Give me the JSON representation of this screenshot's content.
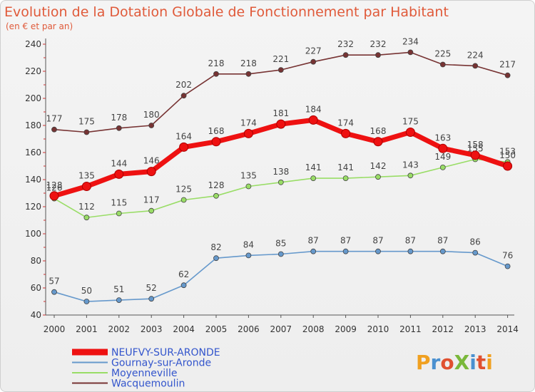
{
  "chart_data": {
    "type": "line",
    "title": "Evolution de la Dotation Globale de Fonctionnement par Habitant",
    "subtitle": "(en € et par an)",
    "xlabel": "",
    "ylabel": "",
    "x": [
      "2000",
      "2001",
      "2002",
      "2003",
      "2004",
      "2005",
      "2006",
      "2007",
      "2008",
      "2009",
      "2010",
      "2011",
      "2012",
      "2013",
      "2014"
    ],
    "ylim": [
      40,
      240
    ],
    "yticks": [
      "40",
      "60",
      "80",
      "100",
      "120",
      "140",
      "160",
      "180",
      "200",
      "220",
      "240"
    ],
    "grid": false,
    "legend_position": "bottom-left",
    "series": [
      {
        "name": "NEUFVY-SUR-ARONDE",
        "color": "#ee1111",
        "values": [
          128,
          135,
          144,
          146,
          164,
          168,
          174,
          181,
          184,
          174,
          168,
          175,
          163,
          158,
          150
        ],
        "labels": [
          "128",
          "135",
          "144",
          "146",
          "164",
          "168",
          "174",
          "181",
          "184",
          "174",
          "168",
          "175",
          "163",
          "158",
          "150"
        ]
      },
      {
        "name": "Gournay-sur-Aronde",
        "color": "#6699cc",
        "values": [
          57,
          50,
          51,
          52,
          62,
          82,
          84,
          85,
          87,
          87,
          87,
          87,
          87,
          86,
          76
        ],
        "labels": [
          "57",
          "50",
          "51",
          "52",
          "62",
          "82",
          "84",
          "85",
          "87",
          "87",
          "87",
          "87",
          "87",
          "86",
          "76"
        ]
      },
      {
        "name": "Moyenneville",
        "color": "#99dd66",
        "values": [
          126,
          112,
          115,
          117,
          125,
          128,
          135,
          138,
          141,
          141,
          142,
          143,
          149,
          155,
          153
        ],
        "labels": [
          "126",
          "112",
          "115",
          "117",
          "125",
          "128",
          "135",
          "138",
          "141",
          "141",
          "142",
          "143",
          "149",
          "155",
          "153"
        ]
      },
      {
        "name": "Wacquemoulin",
        "color": "#773333",
        "values": [
          177,
          175,
          178,
          180,
          202,
          218,
          218,
          221,
          227,
          232,
          232,
          234,
          225,
          224,
          217
        ],
        "labels": [
          "177",
          "175",
          "178",
          "180",
          "202",
          "218",
          "218",
          "221",
          "227",
          "232",
          "232",
          "234",
          "225",
          "224",
          "217"
        ]
      }
    ]
  },
  "brand": {
    "text": "ProXiti"
  }
}
